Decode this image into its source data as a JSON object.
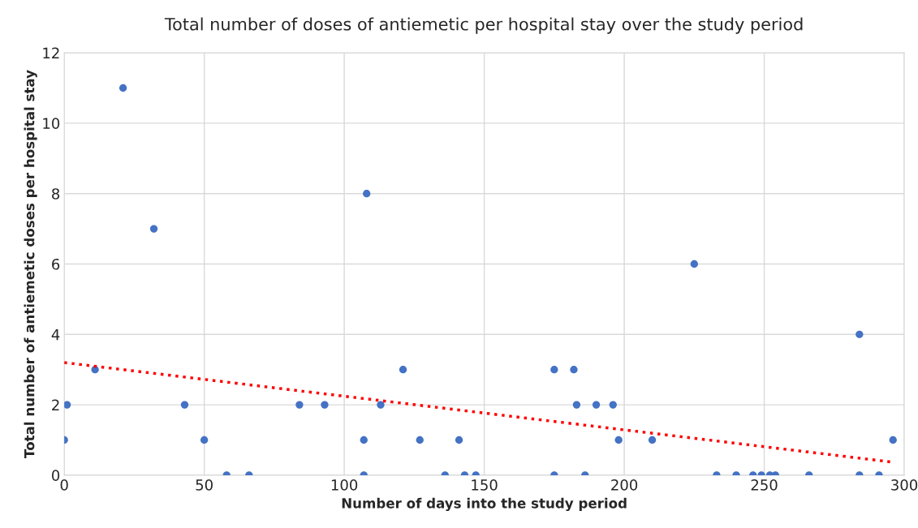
{
  "chart_data": {
    "type": "scatter",
    "title": "Total number of doses of antiemetic per hospital stay over the study period",
    "xlabel": "Number of days into the study period",
    "ylabel": "Total number of antiemetic doses per hospital stay",
    "series": [
      {
        "color": "#4472c4",
        "marker": "circle",
        "x": [
          0,
          1,
          11,
          21,
          32,
          43,
          50,
          58,
          66,
          84,
          93,
          107,
          107,
          108,
          113,
          121,
          127,
          136,
          141,
          143,
          147,
          175,
          175,
          182,
          183,
          186,
          190,
          196,
          198,
          210,
          225,
          233,
          240,
          246,
          249,
          252,
          254,
          266,
          284,
          284,
          291,
          296
        ],
        "values": [
          1,
          2,
          3,
          11,
          7,
          2,
          1,
          0,
          0,
          2,
          2,
          1,
          0,
          8,
          2,
          3,
          1,
          0,
          1,
          0,
          0,
          3,
          0,
          3,
          2,
          0,
          2,
          2,
          1,
          1,
          6,
          0,
          0,
          0,
          0,
          0,
          0,
          0,
          4,
          0,
          0,
          1
        ]
      },
      {
        "type": "line",
        "color": "#ff0000",
        "line_style": "dotted",
        "marker": "none",
        "x": [
          0,
          296
        ],
        "values": [
          3.2,
          0.37
        ]
      }
    ],
    "xlim": [
      0,
      300
    ],
    "xticks": [
      0,
      50,
      100,
      150,
      200,
      250,
      300
    ],
    "ylim": [
      0,
      12
    ],
    "yticks": [
      0,
      2,
      4,
      6,
      8,
      10,
      12
    ],
    "grid": true,
    "legend": false
  }
}
